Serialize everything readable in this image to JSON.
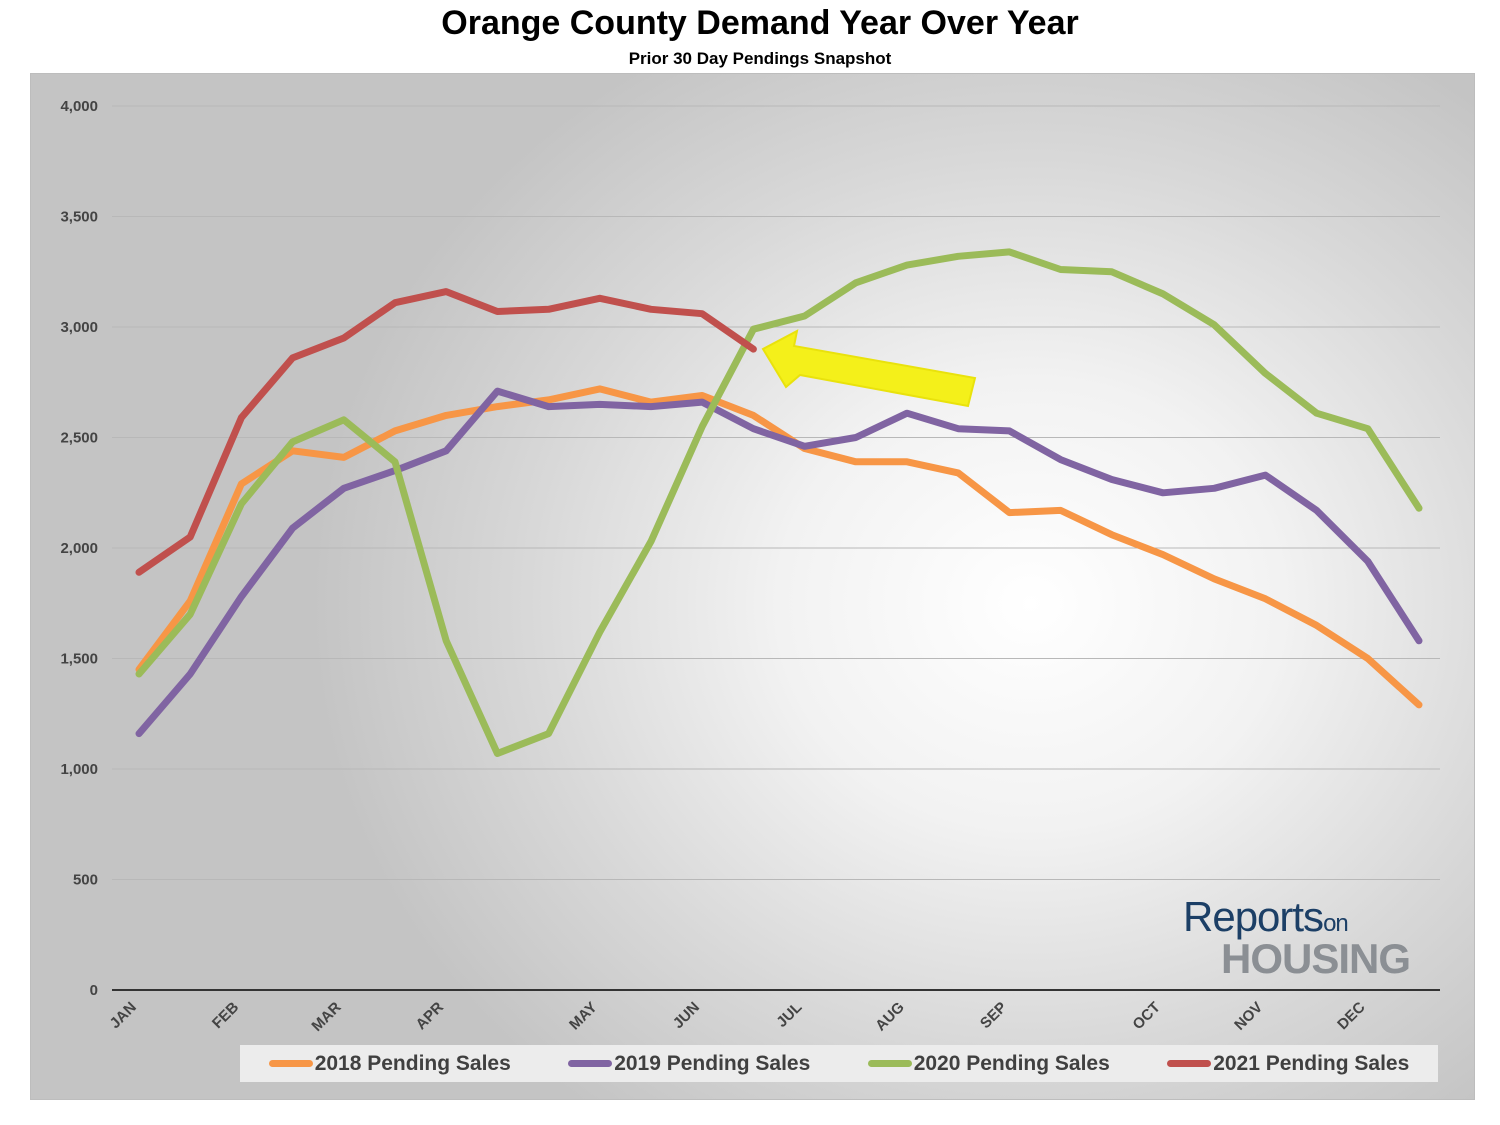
{
  "chart_data": {
    "type": "line",
    "title": "Orange County Demand Year Over Year",
    "subtitle": "Prior 30 Day Pendings Snapshot",
    "xlabel": "",
    "ylabel": "",
    "ylim": [
      0,
      4000
    ],
    "yticks": [
      "0",
      "500",
      "1,000",
      "1,500",
      "2,000",
      "2,500",
      "3,000",
      "3,500",
      "4,000"
    ],
    "ytick_values": [
      0,
      500,
      1000,
      1500,
      2000,
      2500,
      3000,
      3500,
      4000
    ],
    "month_labels": [
      "JAN",
      "FEB",
      "MAR",
      "APR",
      "MAY",
      "JUN",
      "JUL",
      "AUG",
      "SEP",
      "OCT",
      "NOV",
      "DEC"
    ],
    "month_label_points": [
      0,
      2,
      4,
      6,
      9,
      11,
      13,
      15,
      17,
      20,
      22,
      24
    ],
    "grid": true,
    "legend_position": "bottom",
    "series": [
      {
        "name": "2018 Pending Sales",
        "color": "#f79646",
        "values": [
          1450,
          1760,
          2290,
          2440,
          2410,
          2530,
          2600,
          2640,
          2670,
          2720,
          2660,
          2690,
          2600,
          2450,
          2390,
          2390,
          2340,
          2160,
          2170,
          2060,
          1970,
          1860,
          1770,
          1650,
          1500,
          1290
        ]
      },
      {
        "name": "2019 Pending Sales",
        "color": "#8064a2",
        "values": [
          1160,
          1430,
          1780,
          2090,
          2270,
          2350,
          2440,
          2710,
          2640,
          2650,
          2640,
          2660,
          2540,
          2460,
          2500,
          2610,
          2540,
          2530,
          2400,
          2310,
          2250,
          2270,
          2330,
          2170,
          1940,
          1580
        ]
      },
      {
        "name": "2020 Pending Sales",
        "color": "#9bbb59",
        "values": [
          1430,
          1700,
          2200,
          2480,
          2580,
          2390,
          1580,
          1070,
          1160,
          1620,
          2030,
          2550,
          2990,
          3050,
          3200,
          3280,
          3320,
          3340,
          3260,
          3250,
          3150,
          3010,
          2790,
          2610,
          2540,
          2180
        ]
      },
      {
        "name": "2021 Pending Sales",
        "color": "#c0504d",
        "values": [
          1890,
          2050,
          2590,
          2860,
          2950,
          3110,
          3160,
          3070,
          3080,
          3130,
          3080,
          3060,
          2900
        ]
      }
    ]
  },
  "logo": {
    "top_text": "Reports",
    "on_text": "on",
    "bottom_text": "HOUSING"
  }
}
